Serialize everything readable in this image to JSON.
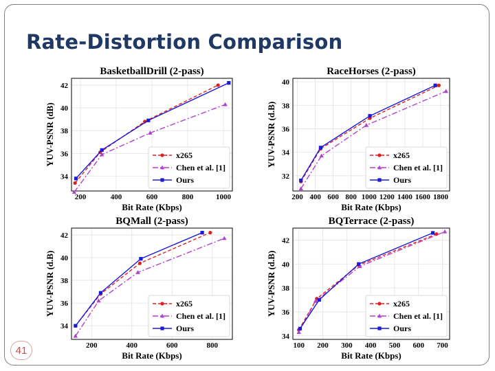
{
  "slide": {
    "title": "Rate-Distortion Comparison",
    "page_number": "41"
  },
  "chart_data": [
    {
      "type": "line",
      "title": "BasketballDrill (2-pass)",
      "xlabel": "Bit Rate (Kbps)",
      "ylabel": "YUV-PSNR (dB)",
      "xlim": [
        150,
        1050
      ],
      "ylim": [
        32.7,
        42.6
      ],
      "xticks": [
        200,
        400,
        600,
        800,
        1000
      ],
      "yticks": [
        34,
        36,
        38,
        40,
        42
      ],
      "grid": true,
      "legend": "bottom-right",
      "series": [
        {
          "name": "x265",
          "color": "#e02020",
          "dash": "5,3",
          "marker": "circle",
          "x": [
            170,
            310,
            560,
            970
          ],
          "y": [
            33.4,
            36.1,
            38.8,
            42.0
          ]
        },
        {
          "name": "Chen et al. [1]",
          "color": "#b040d0",
          "dash": "8,3,2,3",
          "marker": "triangle",
          "x": [
            165,
            320,
            590,
            1010
          ],
          "y": [
            32.6,
            35.9,
            37.8,
            40.3
          ]
        },
        {
          "name": "Ours",
          "color": "#1a1ad8",
          "dash": "",
          "marker": "square",
          "x": [
            175,
            320,
            580,
            1030
          ],
          "y": [
            33.8,
            36.3,
            38.9,
            42.2
          ]
        }
      ]
    },
    {
      "type": "line",
      "title": "RaceHorses (2-pass)",
      "xlabel": "Bit Rate (Kbps)",
      "ylabel": "YUV-PSNR (d.B)",
      "xlim": [
        150,
        1900
      ],
      "ylim": [
        30.7,
        40.3
      ],
      "xticks": [
        200,
        400,
        600,
        800,
        1000,
        1200,
        1400,
        1600,
        1800
      ],
      "yticks": [
        32,
        34,
        36,
        38,
        40
      ],
      "grid": true,
      "legend": "bottom-right",
      "series": [
        {
          "name": "x265",
          "color": "#e02020",
          "dash": "5,3",
          "marker": "circle",
          "x": [
            240,
            460,
            1010,
            1780
          ],
          "y": [
            31.5,
            34.3,
            36.9,
            39.7
          ]
        },
        {
          "name": "Chen et al. [1]",
          "color": "#b040d0",
          "dash": "8,3,2,3",
          "marker": "triangle",
          "x": [
            240,
            470,
            970,
            1860
          ],
          "y": [
            30.9,
            33.7,
            36.3,
            39.2
          ]
        },
        {
          "name": "Ours",
          "color": "#1a1ad8",
          "dash": "",
          "marker": "square",
          "x": [
            240,
            460,
            1010,
            1740
          ],
          "y": [
            31.6,
            34.4,
            37.1,
            39.7
          ]
        }
      ]
    },
    {
      "type": "line",
      "title": "BQMall (2-pass)",
      "xlabel": "Bit Rate (Kbps)",
      "ylabel": "YUV-PSNR (d.B)",
      "xlim": [
        100,
        900
      ],
      "ylim": [
        32.8,
        42.6
      ],
      "xticks": [
        200,
        400,
        600,
        800
      ],
      "yticks": [
        34,
        36,
        38,
        40,
        42
      ],
      "grid": true,
      "legend": "bottom-right",
      "series": [
        {
          "name": "x265",
          "color": "#e02020",
          "dash": "5,3",
          "marker": "circle",
          "x": [
            120,
            245,
            440,
            790
          ],
          "y": [
            34.0,
            36.8,
            39.5,
            42.2
          ]
        },
        {
          "name": "Chen et al. [1]",
          "color": "#b040d0",
          "dash": "8,3,2,3",
          "marker": "triangle",
          "x": [
            120,
            235,
            430,
            860
          ],
          "y": [
            33.1,
            36.2,
            38.7,
            41.7
          ]
        },
        {
          "name": "Ours",
          "color": "#1a1ad8",
          "dash": "",
          "marker": "square",
          "x": [
            120,
            245,
            445,
            750
          ],
          "y": [
            34.0,
            36.9,
            39.9,
            42.2
          ]
        }
      ]
    },
    {
      "type": "line",
      "title": "BQTerrace (2-pass)",
      "xlabel": "Bit Rate (Kbps)",
      "ylabel": "YUV-PSNR (d.B)",
      "xlim": [
        75,
        730
      ],
      "ylim": [
        33.7,
        43.0
      ],
      "xticks": [
        100,
        200,
        300,
        400,
        500,
        600,
        700
      ],
      "yticks": [
        34,
        36,
        38,
        40,
        42
      ],
      "grid": true,
      "legend": "bottom-right",
      "series": [
        {
          "name": "x265",
          "color": "#e02020",
          "dash": "5,3",
          "marker": "circle",
          "x": [
            100,
            175,
            350,
            675
          ],
          "y": [
            34.5,
            37.1,
            39.9,
            42.5
          ]
        },
        {
          "name": "Chen et al. [1]",
          "color": "#b040d0",
          "dash": "8,3,2,3",
          "marker": "triangle",
          "x": [
            100,
            170,
            355,
            710
          ],
          "y": [
            34.3,
            36.9,
            39.8,
            42.7
          ]
        },
        {
          "name": "Ours",
          "color": "#1a1ad8",
          "dash": "",
          "marker": "square",
          "x": [
            105,
            185,
            350,
            660
          ],
          "y": [
            34.6,
            37.0,
            40.0,
            42.6
          ]
        }
      ]
    }
  ]
}
